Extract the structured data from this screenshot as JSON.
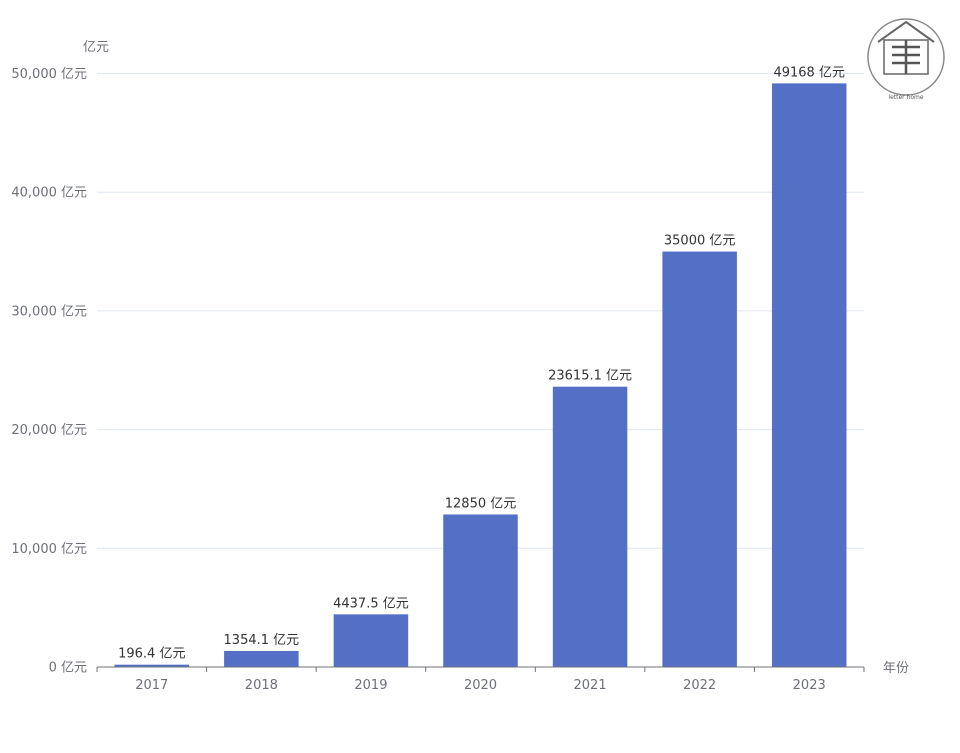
{
  "chart_data": {
    "type": "bar",
    "categories": [
      "2017",
      "2018",
      "2019",
      "2020",
      "2021",
      "2022",
      "2023"
    ],
    "values": [
      196.4,
      1354.1,
      4437.5,
      12850,
      23615.1,
      35000,
      49168
    ],
    "data_labels": [
      "196.4 亿元",
      "1354.1 亿元",
      "4437.5 亿元",
      "12850 亿元",
      "23615.1 亿元",
      "35000 亿元",
      "49168 亿元"
    ],
    "y_ticks": [
      0,
      10000,
      20000,
      30000,
      40000,
      50000
    ],
    "y_tick_labels": [
      "0 亿元",
      "10,000 亿元",
      "20,000 亿元",
      "30,000 亿元",
      "40,000 亿元",
      "50,000 亿元"
    ],
    "ylabel": "亿元",
    "xlabel": "年份",
    "ylim": [
      0,
      50000
    ],
    "grid": true,
    "bar_color": "#5470c6",
    "grid_color": "#e0e6f1",
    "axis_color": "#6e7079"
  },
  "logo": {
    "text": "letter home"
  }
}
